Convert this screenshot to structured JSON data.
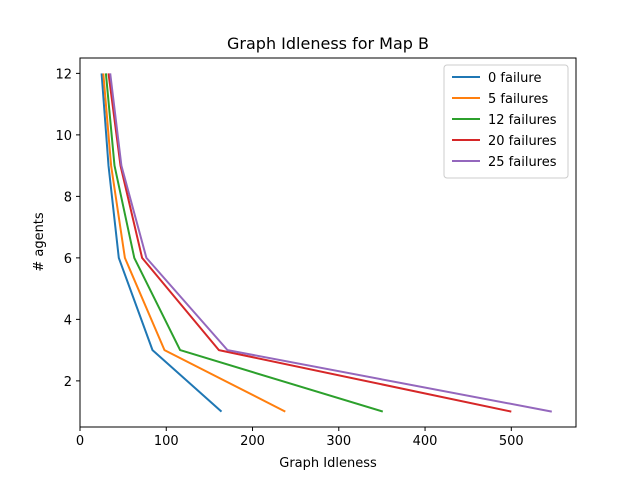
{
  "chart_data": {
    "type": "line",
    "title": "Graph Idleness for Map B",
    "xlabel": "Graph Idleness",
    "ylabel": "# agents",
    "xlim": [
      0,
      575
    ],
    "ylim": [
      0.5,
      12.5
    ],
    "xticks": [
      0,
      100,
      200,
      300,
      400,
      500
    ],
    "yticks": [
      2,
      4,
      6,
      8,
      10,
      12
    ],
    "grid": false,
    "legend_position": "top-right",
    "series": [
      {
        "name": "0 failure",
        "color": "#1f77b4",
        "x": [
          164,
          84,
          45,
          33,
          25
        ],
        "y": [
          1,
          3,
          6,
          9,
          12
        ]
      },
      {
        "name": "5 failures",
        "color": "#ff7f0e",
        "x": [
          238,
          98,
          52,
          36,
          27
        ],
        "y": [
          1,
          3,
          6,
          9,
          12
        ]
      },
      {
        "name": "12 failures",
        "color": "#2ca02c",
        "x": [
          351,
          116,
          63,
          40,
          30
        ],
        "y": [
          1,
          3,
          6,
          9,
          12
        ]
      },
      {
        "name": "20 failures",
        "color": "#d62728",
        "x": [
          500,
          161,
          72,
          47,
          33
        ],
        "y": [
          1,
          3,
          6,
          9,
          12
        ]
      },
      {
        "name": "25 failures",
        "color": "#9467bd",
        "x": [
          547,
          171,
          77,
          48,
          35
        ],
        "y": [
          1,
          3,
          6,
          9,
          12
        ]
      }
    ]
  }
}
